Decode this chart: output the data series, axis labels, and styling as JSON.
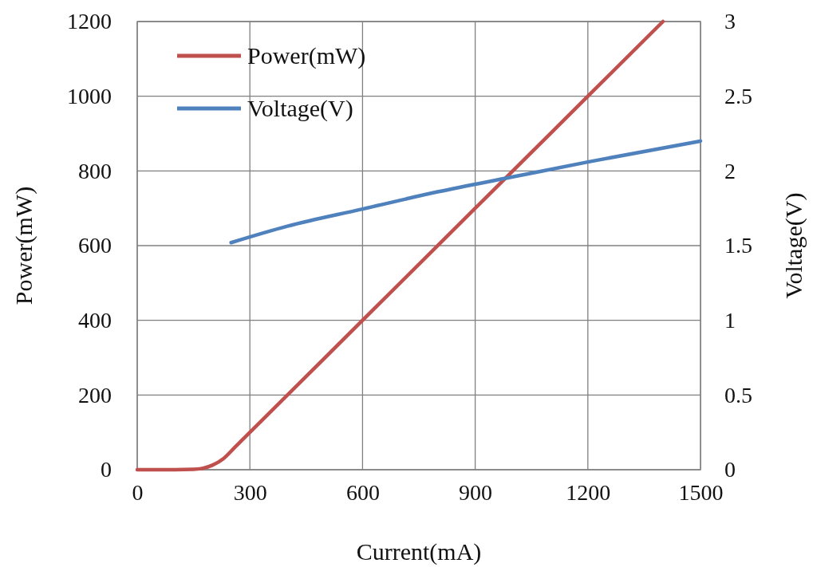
{
  "chart_data": {
    "type": "line",
    "xlabel": "Current(mA)",
    "ylabel": "Power(mW)",
    "y2label": "Voltage(V)",
    "xlim": [
      0,
      1500
    ],
    "xticks": [
      0,
      300,
      600,
      900,
      1200,
      1500
    ],
    "ylim": [
      0,
      1200
    ],
    "yticks": [
      0,
      200,
      400,
      600,
      800,
      1000,
      1200
    ],
    "y2lim": [
      0,
      3
    ],
    "y2ticks": [
      0,
      0.5,
      1,
      1.5,
      2,
      2.5,
      3
    ],
    "grid": true,
    "legend": "top left",
    "line_style": "solid",
    "marker": "none",
    "series": [
      {
        "name": "Power(mW)",
        "color": "#c0504d",
        "x": [
          0,
          50,
          100,
          150,
          170,
          200,
          230,
          260,
          300,
          600,
          900,
          1200,
          1400
        ],
        "values": [
          0,
          0,
          0,
          1,
          3,
          12,
          30,
          60,
          100,
          400,
          700,
          1000,
          1200
        ]
      },
      {
        "name": "Voltage(V)",
        "color": "#4f81bd",
        "axis": "y2",
        "x": [
          250,
          400,
          600,
          800,
          1000,
          1200,
          1500
        ],
        "values": [
          1.52,
          1.63,
          1.745,
          1.86,
          1.96,
          2.06,
          2.2
        ]
      }
    ]
  }
}
